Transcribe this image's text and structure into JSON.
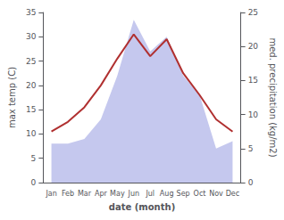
{
  "chart_data": {
    "type": "line",
    "categories": [
      "Jan",
      "Feb",
      "Mar",
      "Apr",
      "May",
      "Jun",
      "Jul",
      "Aug",
      "Sep",
      "Oct",
      "Nov",
      "Dec"
    ],
    "series": [
      {
        "type": "area",
        "color": "#c5c8ee",
        "values": [
          8,
          8,
          9,
          13,
          22,
          33.5,
          27,
          30,
          22,
          18,
          7,
          8.5
        ]
      },
      {
        "type": "line",
        "color": "#b03030",
        "values": [
          10.5,
          12.5,
          15.5,
          20.0,
          25.5,
          30.5,
          26.0,
          29.5,
          22.5,
          18.0,
          13.0,
          10.5
        ]
      }
    ],
    "xlabel": "date (month)",
    "ylabel": "max temp (C)",
    "y2label": "med. precipitation (kg/m2)",
    "ylim": [
      0,
      35
    ],
    "yticks": [
      0,
      5,
      10,
      15,
      20,
      25,
      30,
      35
    ],
    "y2lim": [
      0,
      25
    ],
    "y2ticks": [
      0,
      5,
      10,
      15,
      20,
      25
    ],
    "grid": false
  }
}
